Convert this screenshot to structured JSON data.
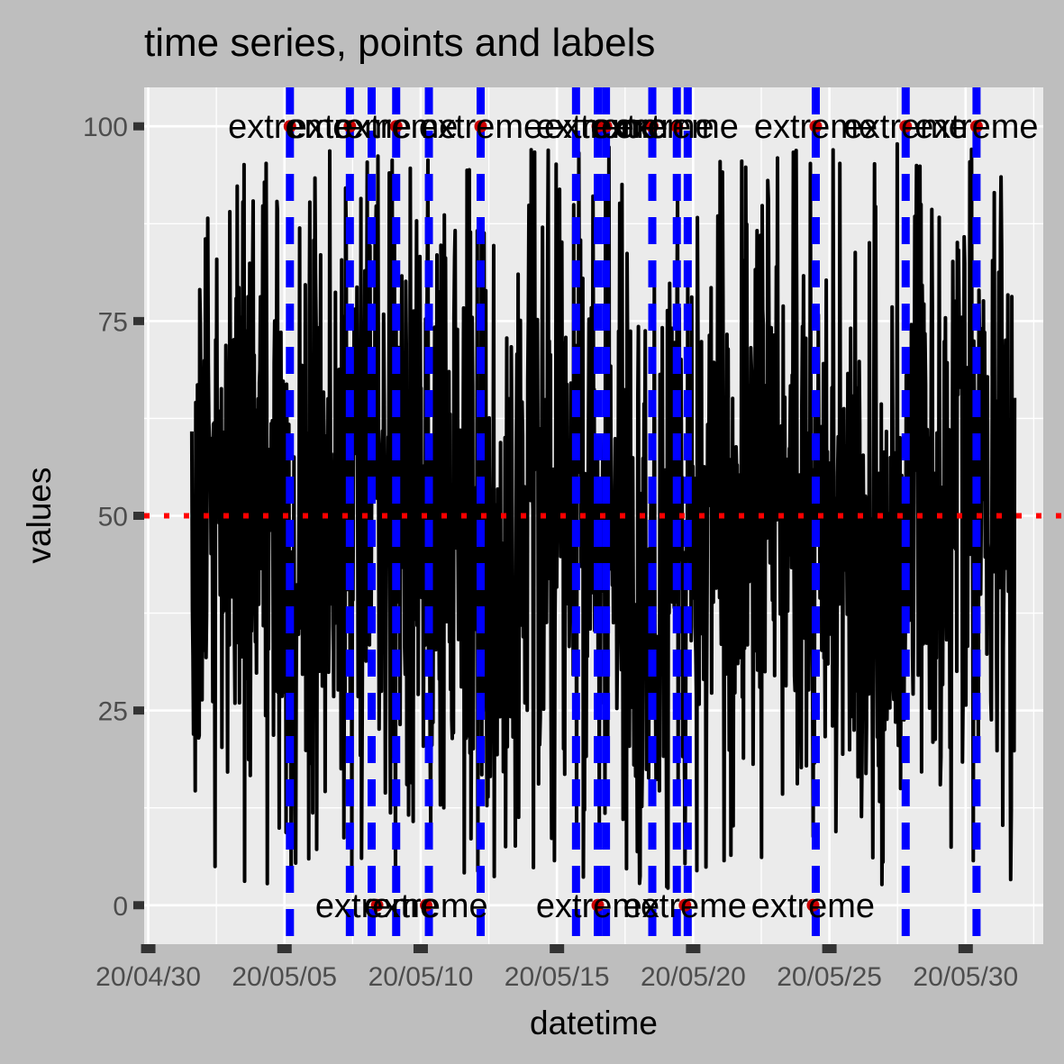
{
  "chart_data": {
    "type": "line",
    "title": "time series, points and labels",
    "xlabel": "datetime",
    "ylabel": "values",
    "x_tick_labels": [
      "20/04/30",
      "20/05/05",
      "20/05/10",
      "20/05/15",
      "20/05/20",
      "20/05/25",
      "20/05/30"
    ],
    "y_tick_labels": [
      "0",
      "25",
      "50",
      "75",
      "100"
    ],
    "y_tick_values": [
      0,
      25,
      50,
      75,
      100
    ],
    "x_tick_days": [
      0,
      5,
      10,
      15,
      20,
      25,
      30
    ],
    "xlim_days": [
      -0.15,
      32.85
    ],
    "ylim": [
      -5,
      105
    ],
    "series_seed": 20200430,
    "series_range_days": [
      1.6,
      31.8
    ],
    "hline": {
      "y": 50,
      "color": "#ff0000",
      "style": "dotted"
    },
    "vlines_days": [
      5.2,
      7.4,
      8.2,
      9.1,
      10.3,
      12.2,
      15.7,
      16.5,
      16.8,
      18.5,
      19.4,
      19.8,
      24.5,
      27.8,
      30.4
    ],
    "vline_color": "#0000ff",
    "extreme_points": [
      {
        "day": 5.2,
        "value": 100,
        "label": "extreme"
      },
      {
        "day": 7.4,
        "value": 100,
        "label": "extreme"
      },
      {
        "day": 9.1,
        "value": 100,
        "label": "extreme"
      },
      {
        "day": 12.2,
        "value": 100,
        "label": "extreme"
      },
      {
        "day": 16.5,
        "value": 100,
        "label": "extreme"
      },
      {
        "day": 16.8,
        "value": 100,
        "label": "extreme"
      },
      {
        "day": 18.5,
        "value": 100,
        "label": "extreme"
      },
      {
        "day": 19.4,
        "value": 100,
        "label": "extreme"
      },
      {
        "day": 24.5,
        "value": 100,
        "label": "extreme"
      },
      {
        "day": 27.8,
        "value": 100,
        "label": "extreme"
      },
      {
        "day": 30.4,
        "value": 100,
        "label": "extreme"
      },
      {
        "day": 8.4,
        "value": 0,
        "label": "extreme"
      },
      {
        "day": 10.2,
        "value": 0,
        "label": "extreme"
      },
      {
        "day": 16.5,
        "value": 0,
        "label": "extreme"
      },
      {
        "day": 19.7,
        "value": 0,
        "label": "extreme"
      },
      {
        "day": 24.4,
        "value": 0,
        "label": "extreme"
      }
    ],
    "point_color": "#cc0000",
    "line_color": "#000000",
    "grid": true,
    "legend": "none"
  }
}
